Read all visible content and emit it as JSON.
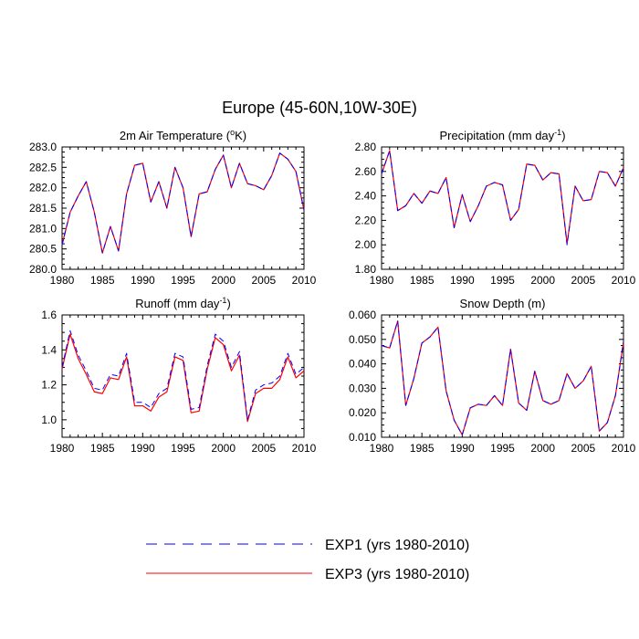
{
  "title": "Europe (45-60N,10W-30E)",
  "legend": [
    {
      "label": "EXP1 (yrs 1980-2010)",
      "color": "#0000ff",
      "style": "dashed"
    },
    {
      "label": "EXP3 (yrs 1980-2010)",
      "color": "#ff0000",
      "style": "solid"
    }
  ],
  "chart_data": [
    {
      "type": "line",
      "title_text": "2m Air Temperature (",
      "title_sup": "o",
      "title_suffix": "K)",
      "xlim": [
        1980,
        2010
      ],
      "ylim": [
        280.0,
        283.0
      ],
      "xticks": [
        1980,
        1985,
        1990,
        1995,
        2000,
        2005,
        2010
      ],
      "yticks": [
        280.0,
        280.5,
        281.0,
        281.5,
        282.0,
        282.5,
        283.0
      ],
      "ytick_labels": [
        "280.0",
        "280.5",
        "281.0",
        "281.5",
        "282.0",
        "282.5",
        "283.0"
      ],
      "x": [
        1980,
        1981,
        1982,
        1983,
        1984,
        1985,
        1986,
        1987,
        1988,
        1989,
        1990,
        1991,
        1992,
        1993,
        1994,
        1995,
        1996,
        1997,
        1998,
        1999,
        2000,
        2001,
        2002,
        2003,
        2004,
        2005,
        2006,
        2007,
        2008,
        2009,
        2010
      ],
      "series": [
        {
          "name": "EXP1",
          "values": [
            280.6,
            281.4,
            281.8,
            282.15,
            281.4,
            280.4,
            281.05,
            280.45,
            281.85,
            282.55,
            282.6,
            281.65,
            282.15,
            281.5,
            282.5,
            282.0,
            280.8,
            281.85,
            281.9,
            282.45,
            282.8,
            282.0,
            282.6,
            282.1,
            282.05,
            281.95,
            282.3,
            282.85,
            282.7,
            282.4,
            281.45
          ]
        },
        {
          "name": "EXP3",
          "values": [
            280.6,
            281.4,
            281.8,
            282.15,
            281.4,
            280.4,
            281.05,
            280.45,
            281.85,
            282.55,
            282.6,
            281.65,
            282.15,
            281.5,
            282.5,
            282.0,
            280.8,
            281.85,
            281.9,
            282.45,
            282.8,
            282.0,
            282.6,
            282.1,
            282.05,
            281.95,
            282.3,
            282.85,
            282.7,
            282.4,
            281.45
          ]
        }
      ]
    },
    {
      "type": "line",
      "title_text": "Precipitation (mm day",
      "title_sup": "-1",
      "title_suffix": ")",
      "xlim": [
        1980,
        2010
      ],
      "ylim": [
        1.8,
        2.8
      ],
      "xticks": [
        1980,
        1985,
        1990,
        1995,
        2000,
        2005,
        2010
      ],
      "yticks": [
        1.8,
        2.0,
        2.2,
        2.4,
        2.6,
        2.8
      ],
      "ytick_labels": [
        "1.80",
        "2.00",
        "2.20",
        "2.40",
        "2.60",
        "2.80"
      ],
      "x": [
        1980,
        1981,
        1982,
        1983,
        1984,
        1985,
        1986,
        1987,
        1988,
        1989,
        1990,
        1991,
        1992,
        1993,
        1994,
        1995,
        1996,
        1997,
        1998,
        1999,
        2000,
        2001,
        2002,
        2003,
        2004,
        2005,
        2006,
        2007,
        2008,
        2009,
        2010
      ],
      "series": [
        {
          "name": "EXP1",
          "values": [
            2.58,
            2.77,
            2.28,
            2.32,
            2.42,
            2.34,
            2.44,
            2.42,
            2.55,
            2.14,
            2.41,
            2.19,
            2.32,
            2.48,
            2.51,
            2.49,
            2.2,
            2.29,
            2.66,
            2.65,
            2.53,
            2.59,
            2.58,
            2.0,
            2.48,
            2.36,
            2.37,
            2.6,
            2.59,
            2.48,
            2.63
          ]
        },
        {
          "name": "EXP3",
          "values": [
            2.58,
            2.77,
            2.28,
            2.32,
            2.42,
            2.34,
            2.44,
            2.42,
            2.55,
            2.14,
            2.41,
            2.19,
            2.32,
            2.48,
            2.51,
            2.49,
            2.2,
            2.29,
            2.66,
            2.65,
            2.53,
            2.59,
            2.58,
            2.01,
            2.48,
            2.36,
            2.37,
            2.6,
            2.59,
            2.48,
            2.63
          ]
        }
      ]
    },
    {
      "type": "line",
      "title_text": "Runoff (mm day",
      "title_sup": "-1",
      "title_suffix": ")",
      "xlim": [
        1980,
        2010
      ],
      "ylim": [
        0.9,
        1.6
      ],
      "xticks": [
        1980,
        1985,
        1990,
        1995,
        2000,
        2005,
        2010
      ],
      "yticks": [
        1.0,
        1.2,
        1.4,
        1.6
      ],
      "ytick_labels": [
        "1.0",
        "1.2",
        "1.4",
        "1.6"
      ],
      "x": [
        1980,
        1981,
        1982,
        1983,
        1984,
        1985,
        1986,
        1987,
        1988,
        1989,
        1990,
        1991,
        1992,
        1993,
        1994,
        1995,
        1996,
        1997,
        1998,
        1999,
        2000,
        2001,
        2002,
        2003,
        2004,
        2005,
        2006,
        2007,
        2008,
        2009,
        2010
      ],
      "series": [
        {
          "name": "EXP1",
          "values": [
            1.3,
            1.51,
            1.37,
            1.28,
            1.18,
            1.17,
            1.26,
            1.25,
            1.38,
            1.1,
            1.1,
            1.07,
            1.15,
            1.18,
            1.38,
            1.36,
            1.06,
            1.07,
            1.31,
            1.49,
            1.45,
            1.3,
            1.39,
            1.0,
            1.17,
            1.2,
            1.21,
            1.25,
            1.38,
            1.26,
            1.3
          ]
        },
        {
          "name": "EXP3",
          "values": [
            1.29,
            1.49,
            1.35,
            1.26,
            1.16,
            1.15,
            1.24,
            1.23,
            1.36,
            1.08,
            1.08,
            1.05,
            1.13,
            1.16,
            1.36,
            1.34,
            1.04,
            1.05,
            1.29,
            1.47,
            1.43,
            1.28,
            1.37,
            0.99,
            1.15,
            1.18,
            1.18,
            1.23,
            1.36,
            1.24,
            1.28
          ]
        }
      ]
    },
    {
      "type": "line",
      "title_text": "Snow Depth (m)",
      "title_sup": "",
      "title_suffix": "",
      "xlim": [
        1980,
        2010
      ],
      "ylim": [
        0.01,
        0.06
      ],
      "xticks": [
        1980,
        1985,
        1990,
        1995,
        2000,
        2005,
        2010
      ],
      "yticks": [
        0.01,
        0.02,
        0.03,
        0.04,
        0.05,
        0.06
      ],
      "ytick_labels": [
        "0.010",
        "0.020",
        "0.030",
        "0.040",
        "0.050",
        "0.060"
      ],
      "x": [
        1980,
        1981,
        1982,
        1983,
        1984,
        1985,
        1986,
        1987,
        1988,
        1989,
        1990,
        1991,
        1992,
        1993,
        1994,
        1995,
        1996,
        1997,
        1998,
        1999,
        2000,
        2001,
        2002,
        2003,
        2004,
        2005,
        2006,
        2007,
        2008,
        2009,
        2010
      ],
      "series": [
        {
          "name": "EXP1",
          "values": [
            0.0475,
            0.0465,
            0.0575,
            0.023,
            0.034,
            0.0485,
            0.051,
            0.055,
            0.029,
            0.017,
            0.011,
            0.022,
            0.0235,
            0.023,
            0.027,
            0.023,
            0.046,
            0.024,
            0.021,
            0.037,
            0.025,
            0.0235,
            0.025,
            0.036,
            0.03,
            0.033,
            0.039,
            0.0125,
            0.016,
            0.027,
            0.049
          ]
        },
        {
          "name": "EXP3",
          "values": [
            0.0475,
            0.0465,
            0.0575,
            0.023,
            0.034,
            0.0485,
            0.051,
            0.055,
            0.029,
            0.017,
            0.011,
            0.022,
            0.0235,
            0.023,
            0.027,
            0.023,
            0.046,
            0.024,
            0.021,
            0.037,
            0.025,
            0.0235,
            0.025,
            0.036,
            0.03,
            0.033,
            0.039,
            0.0125,
            0.016,
            0.027,
            0.049
          ]
        }
      ]
    }
  ]
}
